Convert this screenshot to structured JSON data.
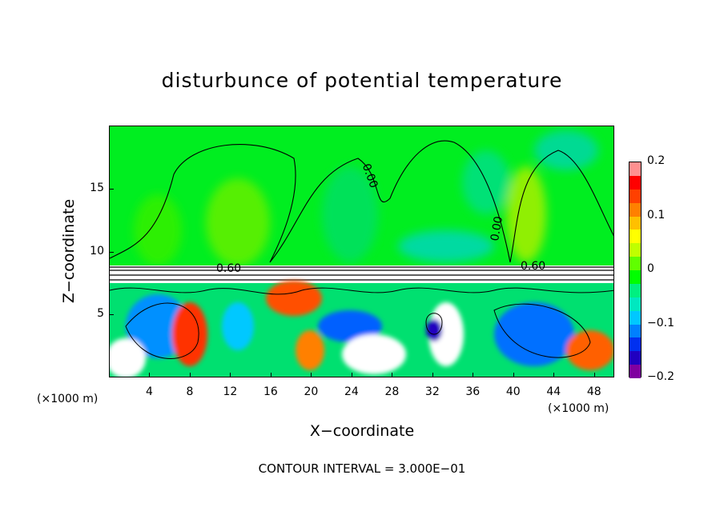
{
  "chart_data": {
    "type": "heatmap",
    "title": "disturbunce of potential temperature",
    "xlabel": "X−coordinate",
    "ylabel": "Z−coordinate",
    "x_unit": "(×1000 m)",
    "x_ticks": [
      4,
      8,
      12,
      16,
      20,
      24,
      28,
      32,
      36,
      40,
      44,
      48
    ],
    "y_ticks": [
      5,
      10,
      15
    ],
    "xlim": [
      0,
      50
    ],
    "ylim": [
      0,
      20
    ],
    "colorbar": {
      "min": -0.2,
      "max": 0.2,
      "tick_labels": [
        "0.2",
        "0.1",
        "0",
        "−0.1",
        "−0.2"
      ],
      "tick_values": [
        0.2,
        0.1,
        0,
        -0.1,
        -0.2
      ],
      "colors": [
        "#8000a0",
        "#2000c0",
        "#0030f0",
        "#0080ff",
        "#00c8ff",
        "#00e8c0",
        "#00f080",
        "#00ff00",
        "#60ff00",
        "#c0ff00",
        "#ffff00",
        "#ffc000",
        "#ff8000",
        "#ff4000",
        "#ff0000",
        "#ff9090"
      ]
    },
    "contour_labels": [
      "0.00",
      "0.60",
      "0.00",
      "0.60"
    ],
    "footnote": "CONTOUR INTERVAL = 3.000E−01"
  }
}
